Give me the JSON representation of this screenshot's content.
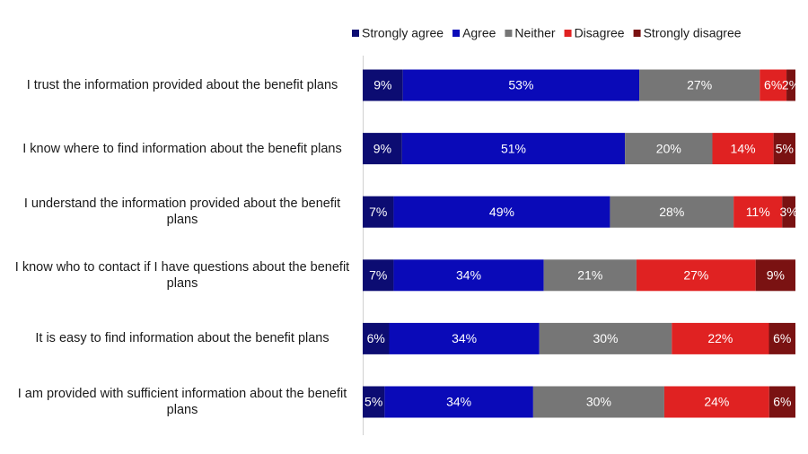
{
  "chart_data": {
    "type": "stacked-bar",
    "categories": [
      "I trust the information provided about the benefit plans",
      "I know where to find information about the benefit plans",
      "I understand the information provided about the benefit plans",
      "I know who to contact if I have questions about the benefit plans",
      "It is easy to find information about the benefit plans",
      "I am provided with sufficient information about the benefit plans"
    ],
    "series": [
      {
        "name": "Strongly agree",
        "color": "#0c0c72",
        "values": [
          9,
          9,
          7,
          7,
          6,
          5
        ],
        "value_labels": [
          "9%",
          "9%",
          "7%",
          "7%",
          "6%",
          "5%"
        ]
      },
      {
        "name": "Agree",
        "color": "#0a0ab8",
        "values": [
          53,
          51,
          49,
          34,
          34,
          34
        ],
        "value_labels": [
          "53%",
          "51%",
          "49%",
          "34%",
          "34%",
          "34%"
        ]
      },
      {
        "name": "Neither",
        "color": "#767676",
        "values": [
          27,
          20,
          28,
          21,
          30,
          30
        ],
        "value_labels": [
          "27%",
          "20%",
          "28%",
          "21%",
          "30%",
          "30%"
        ]
      },
      {
        "name": "Disagree",
        "color": "#e02222",
        "values": [
          6,
          14,
          11,
          27,
          22,
          24
        ],
        "value_labels": [
          "6%",
          "14%",
          "11%",
          "27%",
          "22%",
          "24%"
        ]
      },
      {
        "name": "Strongly disagree",
        "color": "#7a1212",
        "values": [
          2,
          5,
          3,
          9,
          6,
          6
        ],
        "value_labels": [
          "2%",
          "5%",
          "3%",
          "9%",
          "6%",
          "6%"
        ]
      }
    ]
  }
}
